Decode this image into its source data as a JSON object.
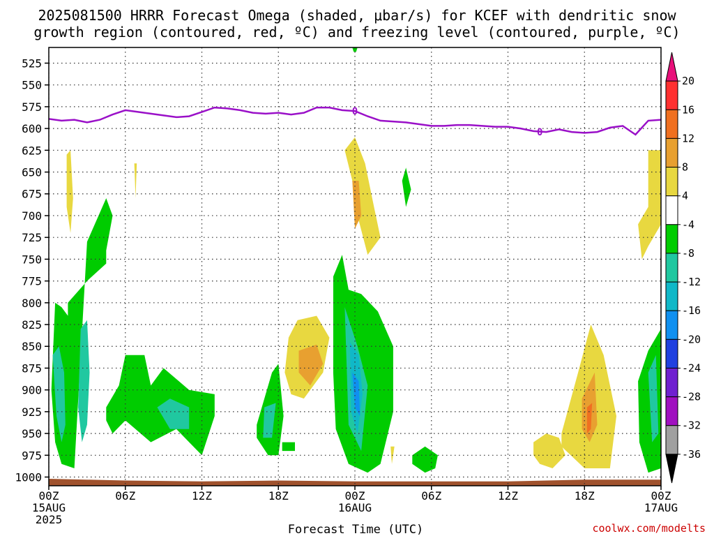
{
  "title_line1": "2025081500 HRRR Forecast Omega (shaded, μbar/s) for KCEF with dendritic snow",
  "title_line2": "growth region (contoured, red, ºC) and freezing level (contoured, purple, ºC)",
  "xlabel": "Forecast Time (UTC)",
  "credit": "coolwx.com/modelts",
  "colors": {
    "freezing_level": "#9a10c8",
    "ground": "#a0522d",
    "credit": "#cc0000"
  },
  "chart_data": {
    "type": "heatmap",
    "y_axis": {
      "label": "",
      "scale": "pressure (inverted)",
      "ticks": [
        "525",
        "550",
        "575",
        "600",
        "625",
        "650",
        "675",
        "700",
        "725",
        "750",
        "775",
        "800",
        "825",
        "850",
        "875",
        "900",
        "925",
        "950",
        "975",
        "1000"
      ],
      "range": [
        1010,
        507
      ]
    },
    "x_axis": {
      "range": [
        "2025-08-15 00Z",
        "2025-08-17 00Z"
      ],
      "ticks": [
        {
          "hour": 0,
          "lines": [
            "00Z",
            "15AUG",
            "2025"
          ]
        },
        {
          "hour": 6,
          "lines": [
            "06Z"
          ]
        },
        {
          "hour": 12,
          "lines": [
            "12Z"
          ]
        },
        {
          "hour": 18,
          "lines": [
            "18Z"
          ]
        },
        {
          "hour": 24,
          "lines": [
            "00Z",
            "16AUG"
          ]
        },
        {
          "hour": 30,
          "lines": [
            "06Z"
          ]
        },
        {
          "hour": 36,
          "lines": [
            "12Z"
          ]
        },
        {
          "hour": 42,
          "lines": [
            "18Z"
          ]
        },
        {
          "hour": 48,
          "lines": [
            "00Z",
            "17AUG"
          ]
        }
      ]
    },
    "grid": true,
    "colorbar": {
      "labels": [
        "20",
        "16",
        "12",
        "8",
        "4",
        "-4",
        "-8",
        "-12",
        "-16",
        "-20",
        "-24",
        "-28",
        "-32",
        "-36"
      ],
      "bins": [
        {
          "range": "> 20",
          "color": "#e8107a"
        },
        {
          "range": "16 to 20",
          "color": "#ff3030"
        },
        {
          "range": "12 to 16",
          "color": "#f07020"
        },
        {
          "range": "8 to 12",
          "color": "#e8a030"
        },
        {
          "range": "4 to 8",
          "color": "#e8d840"
        },
        {
          "range": "-4 to 4",
          "color": "#ffffff"
        },
        {
          "range": "-8 to -4",
          "color": "#00cc00"
        },
        {
          "range": "-12 to -8",
          "color": "#20c8a0"
        },
        {
          "range": "-16 to -12",
          "color": "#10b8c8"
        },
        {
          "range": "-20 to -16",
          "color": "#1090f0"
        },
        {
          "range": "-24 to -20",
          "color": "#2040e0"
        },
        {
          "range": "-28 to -24",
          "color": "#7020d0"
        },
        {
          "range": "-32 to -28",
          "color": "#a010c0"
        },
        {
          "range": "-36 to -32",
          "color": "#a0a0a0"
        },
        {
          "range": "< -36",
          "color": "#000000"
        }
      ]
    },
    "freezing_level": {
      "label": "0",
      "hours": [
        0,
        1,
        2,
        3,
        4,
        5,
        6,
        7,
        8,
        9,
        10,
        11,
        12,
        13,
        14,
        15,
        16,
        17,
        18,
        19,
        20,
        21,
        22,
        23,
        24,
        25,
        26,
        27,
        28,
        29,
        30,
        31,
        32,
        33,
        34,
        35,
        36,
        37,
        38,
        39,
        40,
        41,
        42,
        43,
        44,
        45,
        46,
        47,
        48
      ],
      "pressure": [
        589,
        591,
        590,
        593,
        590,
        584,
        579,
        581,
        583,
        585,
        587,
        586,
        581,
        576,
        577,
        579,
        582,
        583,
        582,
        584,
        582,
        576,
        576,
        579,
        580,
        586,
        591,
        592,
        593,
        595,
        597,
        597,
        596,
        596,
        597,
        598,
        598,
        600,
        603,
        604,
        601,
        604,
        605,
        604,
        599,
        597,
        607,
        591,
        590
      ]
    },
    "shaded_regions": [
      {
        "id": "green-left",
        "bin": "-8 to -4",
        "hours": [
          0.5,
          1.0,
          1.5,
          1.5,
          3.0,
          4.5,
          4.5,
          5.0,
          4.5,
          3.0,
          2.0,
          1.0,
          0.5,
          0.2
        ],
        "p": [
          800,
          805,
          815,
          800,
          775,
          755,
          740,
          700,
          680,
          730,
          990,
          985,
          960,
          900
        ]
      },
      {
        "id": "teal-left-1",
        "bin": "-12 to -8",
        "hours": [
          0.3,
          0.8,
          1.2,
          1.3,
          1.0,
          0.6
        ],
        "p": [
          860,
          850,
          880,
          940,
          960,
          930
        ]
      },
      {
        "id": "teal-left-2",
        "bin": "-12 to -8",
        "hours": [
          2.5,
          3.0,
          3.2,
          3.0,
          2.6,
          2.3
        ],
        "p": [
          830,
          820,
          880,
          940,
          960,
          920
        ]
      },
      {
        "id": "yellow-left-1",
        "bin": "4 to 8",
        "hours": [
          1.4,
          1.7,
          1.9,
          1.7,
          1.4
        ],
        "p": [
          630,
          625,
          680,
          720,
          690
        ]
      },
      {
        "id": "yellow-left-2",
        "bin": "4 to 8",
        "hours": [
          6.7,
          6.9,
          6.8
        ],
        "p": [
          640,
          640,
          680
        ]
      },
      {
        "id": "green-mid-left",
        "bin": "-8 to -4",
        "hours": [
          4.5,
          5.5,
          6.0,
          7.5,
          8.0,
          9.0,
          11.0,
          13.0,
          13.0,
          12.0,
          10.0,
          8.0,
          6.0,
          5.0,
          4.5
        ],
        "p": [
          920,
          895,
          860,
          860,
          895,
          875,
          900,
          905,
          930,
          975,
          945,
          960,
          935,
          950,
          935
        ]
      },
      {
        "id": "teal-mid-left",
        "bin": "-12 to -8",
        "hours": [
          8.5,
          9.5,
          11.0,
          11.0,
          9.5
        ],
        "p": [
          920,
          910,
          920,
          945,
          945
        ]
      },
      {
        "id": "green-18z",
        "bin": "-8 to -4",
        "hours": [
          16.3,
          17.5,
          18.0,
          18.4,
          18.0,
          17.2,
          16.3
        ],
        "p": [
          940,
          880,
          870,
          930,
          975,
          975,
          955
        ]
      },
      {
        "id": "teal-18z",
        "bin": "-12 to -8",
        "hours": [
          16.9,
          17.8,
          17.5,
          16.8
        ],
        "p": [
          920,
          915,
          955,
          955
        ]
      },
      {
        "id": "green-small-19z",
        "bin": "-8 to -4",
        "hours": [
          18.3,
          19.3,
          19.3,
          18.3
        ],
        "p": [
          960,
          960,
          970,
          970
        ]
      },
      {
        "id": "yellow-20z",
        "bin": "4 to 8",
        "hours": [
          18.8,
          19.5,
          21.0,
          22.0,
          21.5,
          20.0,
          19.0,
          18.5
        ],
        "p": [
          840,
          820,
          815,
          840,
          880,
          910,
          905,
          880
        ]
      },
      {
        "id": "orange-20z",
        "bin": "8 to 12",
        "hours": [
          19.6,
          21.0,
          21.5,
          20.5,
          19.6
        ],
        "p": [
          855,
          848,
          870,
          895,
          880
        ]
      },
      {
        "id": "green-00z",
        "bin": "-8 to -4",
        "hours": [
          22.3,
          23.0,
          23.5,
          24.5,
          25.8,
          27.0,
          27.0,
          26.0,
          25.0,
          23.5,
          22.5,
          22.3
        ],
        "p": [
          770,
          745,
          785,
          790,
          810,
          850,
          925,
          985,
          995,
          985,
          945,
          880
        ]
      },
      {
        "id": "teal-00z",
        "bin": "-12 to -8",
        "hours": [
          23.2,
          24.2,
          25.0,
          24.5,
          23.5
        ],
        "p": [
          805,
          850,
          895,
          970,
          940
        ]
      },
      {
        "id": "lightblue-00z",
        "bin": "-16 to -12",
        "hours": [
          23.6,
          24.3,
          24.6,
          24.2,
          23.7
        ],
        "p": [
          845,
          860,
          905,
          950,
          925
        ]
      },
      {
        "id": "blue-00z",
        "bin": "-20 to -16",
        "hours": [
          23.8,
          24.3,
          24.4,
          24.0
        ],
        "p": [
          880,
          890,
          930,
          920
        ]
      },
      {
        "id": "yellow-00z",
        "bin": "4 to 8",
        "hours": [
          23.2,
          24.0,
          24.8,
          25.5,
          26.0,
          25.0,
          24.2,
          23.8
        ],
        "p": [
          625,
          610,
          640,
          690,
          725,
          745,
          700,
          660
        ]
      },
      {
        "id": "orange-00z",
        "bin": "8 to 12",
        "hours": [
          23.8,
          24.3,
          24.5,
          24.0
        ],
        "p": [
          660,
          660,
          700,
          715
        ]
      },
      {
        "id": "green-03z",
        "bin": "-8 to -4",
        "hours": [
          27.7,
          28.0,
          28.4,
          28.0
        ],
        "p": [
          660,
          645,
          670,
          690
        ]
      },
      {
        "id": "yellow-03z",
        "bin": "4 to 8",
        "hours": [
          26.8,
          27.1,
          26.9
        ],
        "p": [
          965,
          965,
          985
        ]
      },
      {
        "id": "green-05z",
        "bin": "-8 to -4",
        "hours": [
          28.5,
          29.5,
          30.5,
          30.3,
          29.5,
          28.5
        ],
        "p": [
          975,
          965,
          975,
          990,
          995,
          985
        ]
      },
      {
        "id": "yellow-15z",
        "bin": "4 to 8",
        "hours": [
          38.0,
          39.0,
          40.0,
          40.5,
          39.5,
          38.5,
          38.0
        ],
        "p": [
          960,
          950,
          955,
          975,
          990,
          985,
          975
        ]
      },
      {
        "id": "yellow-18z",
        "bin": "4 to 8",
        "hours": [
          40.2,
          41.5,
          42.5,
          43.5,
          44.5,
          44.0,
          42.0,
          40.2
        ],
        "p": [
          950,
          880,
          825,
          860,
          930,
          990,
          990,
          965
        ]
      },
      {
        "id": "orange-18z",
        "bin": "8 to 12",
        "hours": [
          41.8,
          42.8,
          43.0,
          42.4,
          41.8
        ],
        "p": [
          910,
          880,
          940,
          960,
          945
        ]
      },
      {
        "id": "red-18z",
        "bin": "12 to 16",
        "hours": [
          42.2,
          42.6,
          42.5,
          42.2
        ],
        "p": [
          920,
          915,
          945,
          950
        ]
      },
      {
        "id": "yellow-right-top",
        "bin": "4 to 8",
        "hours": [
          46.2,
          47.0,
          47.0,
          48.0,
          48.0,
          47.0,
          46.5
        ],
        "p": [
          710,
          690,
          625,
          625,
          710,
          735,
          750
        ]
      },
      {
        "id": "green-right",
        "bin": "-8 to -4",
        "hours": [
          46.2,
          47.0,
          48.0,
          48.0,
          47.0,
          46.3
        ],
        "p": [
          890,
          855,
          830,
          990,
          995,
          960
        ]
      },
      {
        "id": "teal-right",
        "bin": "-12 to -8",
        "hours": [
          47.0,
          47.6,
          47.8,
          47.3
        ],
        "p": [
          880,
          860,
          950,
          960
        ]
      },
      {
        "id": "green-top-00z",
        "bin": "-8 to -4",
        "hours": [
          23.8,
          24.2,
          24.1,
          23.9
        ],
        "p": [
          507,
          507,
          512,
          512
        ]
      }
    ],
    "ground": {
      "hours": [
        0,
        6,
        12,
        18,
        24,
        30,
        36,
        42,
        48
      ],
      "pressure": [
        1002,
        1004,
        1005,
        1004,
        1005,
        1005,
        1005,
        1003,
        1003
      ]
    }
  }
}
